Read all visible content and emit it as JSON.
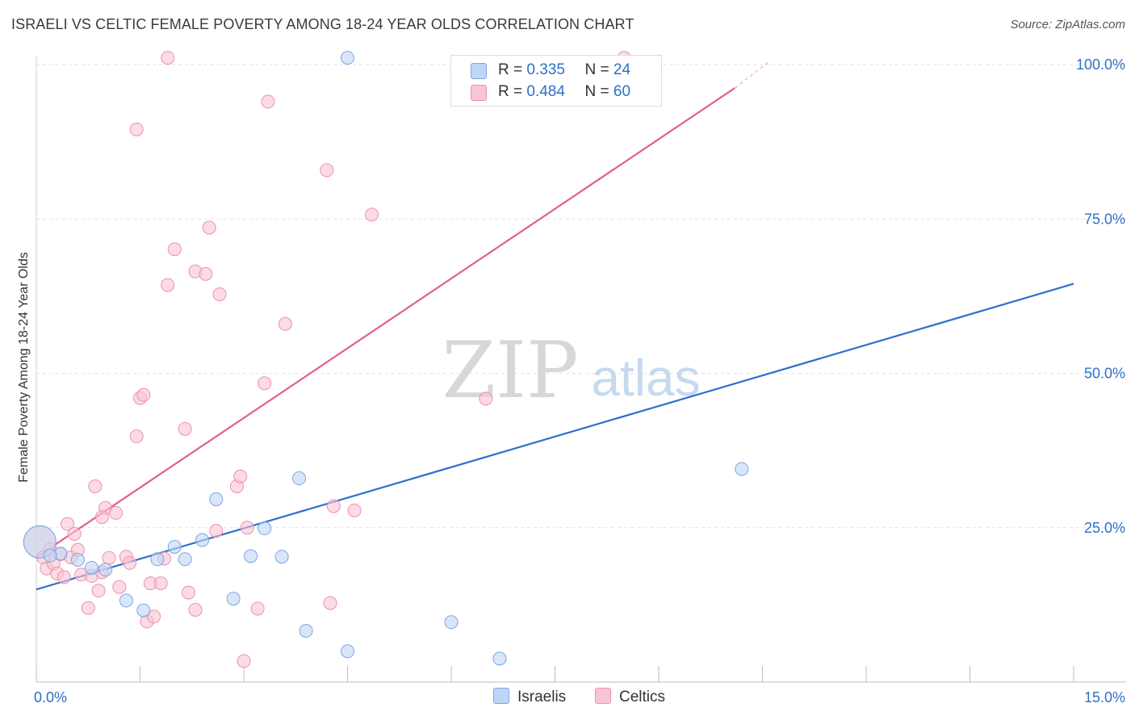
{
  "title": "ISRAELI VS CELTIC FEMALE POVERTY AMONG 18-24 YEAR OLDS CORRELATION CHART",
  "source": "Source: ZipAtlas.com",
  "watermark": {
    "zip": "ZIP",
    "atlas": "atlas"
  },
  "legend": {
    "r_label": "R =",
    "n_label": "N =",
    "rows": [
      {
        "r": "0.335",
        "n": "24"
      },
      {
        "r": "0.484",
        "n": "60"
      }
    ]
  },
  "chart_data": {
    "type": "scatter",
    "title": "ISRAELI VS CELTIC FEMALE POVERTY AMONG 18-24 YEAR OLDS CORRELATION CHART",
    "xlabel": "",
    "ylabel": "Female Poverty Among 18-24 Year Olds",
    "xlim": [
      0,
      15
    ],
    "ylim": [
      0,
      103
    ],
    "x_tick_labels": [
      "0.0%",
      "15.0%"
    ],
    "y_ticks": [
      25,
      50,
      75,
      100
    ],
    "y_tick_labels": [
      "25.0%",
      "50.0%",
      "75.0%",
      "100.0%"
    ],
    "grid": true,
    "colors": {
      "israelis_fill": "#c0d5f5",
      "israelis_stroke": "#7aa6e3",
      "israelis_line": "#2b6fce",
      "celtics_fill": "#f8c5d4",
      "celtics_stroke": "#ef8fab",
      "celtics_line": "#e0608c",
      "tick_label": "#2f6fc9"
    },
    "series": [
      {
        "name": "Israelis",
        "r": 0.335,
        "n": 24,
        "trend": {
          "x": [
            0,
            15
          ],
          "y": [
            15.0,
            64.5
          ]
        },
        "points": [
          {
            "x": 0.05,
            "y": 22.7,
            "big": true
          },
          {
            "x": 0.35,
            "y": 20.8
          },
          {
            "x": 0.6,
            "y": 19.8
          },
          {
            "x": 0.8,
            "y": 18.5
          },
          {
            "x": 1.0,
            "y": 18.2
          },
          {
            "x": 1.3,
            "y": 13.2
          },
          {
            "x": 1.55,
            "y": 11.6
          },
          {
            "x": 1.75,
            "y": 19.9
          },
          {
            "x": 2.0,
            "y": 21.9
          },
          {
            "x": 2.15,
            "y": 19.9
          },
          {
            "x": 2.4,
            "y": 23.0
          },
          {
            "x": 2.6,
            "y": 29.6
          },
          {
            "x": 2.85,
            "y": 13.5
          },
          {
            "x": 3.1,
            "y": 20.4
          },
          {
            "x": 3.3,
            "y": 24.9
          },
          {
            "x": 3.55,
            "y": 20.3
          },
          {
            "x": 3.8,
            "y": 33.0
          },
          {
            "x": 3.9,
            "y": 8.3
          },
          {
            "x": 4.5,
            "y": 5.0
          },
          {
            "x": 4.5,
            "y": 101.1
          },
          {
            "x": 6.0,
            "y": 9.7
          },
          {
            "x": 6.7,
            "y": 3.8
          },
          {
            "x": 10.2,
            "y": 34.5
          },
          {
            "x": 0.2,
            "y": 20.5
          }
        ]
      },
      {
        "name": "Celtics",
        "r": 0.484,
        "n": 60,
        "trend": {
          "x": [
            0,
            10.1
          ],
          "y": [
            20.2,
            96.2
          ]
        },
        "trend_dashed": {
          "x": [
            10.1,
            10.6
          ],
          "y": [
            96.2,
            100.5
          ]
        },
        "points": [
          {
            "x": 0.05,
            "y": 22.7,
            "big": true
          },
          {
            "x": 0.1,
            "y": 20.2
          },
          {
            "x": 0.15,
            "y": 18.4
          },
          {
            "x": 0.2,
            "y": 21.5
          },
          {
            "x": 0.25,
            "y": 19.2
          },
          {
            "x": 0.3,
            "y": 17.6
          },
          {
            "x": 0.35,
            "y": 20.7
          },
          {
            "x": 0.4,
            "y": 17.0
          },
          {
            "x": 0.45,
            "y": 25.6
          },
          {
            "x": 0.5,
            "y": 20.2
          },
          {
            "x": 0.55,
            "y": 24.0
          },
          {
            "x": 0.6,
            "y": 21.4
          },
          {
            "x": 0.65,
            "y": 17.4
          },
          {
            "x": 0.75,
            "y": 12.0
          },
          {
            "x": 0.8,
            "y": 17.2
          },
          {
            "x": 0.85,
            "y": 31.7
          },
          {
            "x": 0.9,
            "y": 14.8
          },
          {
            "x": 0.95,
            "y": 17.8
          },
          {
            "x": 1.0,
            "y": 28.2
          },
          {
            "x": 1.05,
            "y": 20.1
          },
          {
            "x": 1.15,
            "y": 27.4
          },
          {
            "x": 1.2,
            "y": 15.4
          },
          {
            "x": 1.3,
            "y": 20.3
          },
          {
            "x": 1.35,
            "y": 19.3
          },
          {
            "x": 1.45,
            "y": 39.8
          },
          {
            "x": 1.45,
            "y": 89.5
          },
          {
            "x": 1.5,
            "y": 46.0
          },
          {
            "x": 1.55,
            "y": 46.5
          },
          {
            "x": 1.6,
            "y": 9.8
          },
          {
            "x": 1.65,
            "y": 16.0
          },
          {
            "x": 1.7,
            "y": 10.6
          },
          {
            "x": 1.8,
            "y": 16.0
          },
          {
            "x": 1.85,
            "y": 20.0
          },
          {
            "x": 1.9,
            "y": 64.3
          },
          {
            "x": 1.9,
            "y": 101.1
          },
          {
            "x": 2.0,
            "y": 70.1
          },
          {
            "x": 2.15,
            "y": 41.0
          },
          {
            "x": 2.2,
            "y": 14.5
          },
          {
            "x": 2.3,
            "y": 66.5
          },
          {
            "x": 2.3,
            "y": 11.7
          },
          {
            "x": 2.45,
            "y": 66.1
          },
          {
            "x": 2.5,
            "y": 73.6
          },
          {
            "x": 2.6,
            "y": 24.5
          },
          {
            "x": 2.65,
            "y": 62.8
          },
          {
            "x": 2.9,
            "y": 31.7
          },
          {
            "x": 2.95,
            "y": 33.3
          },
          {
            "x": 3.0,
            "y": 3.4
          },
          {
            "x": 3.05,
            "y": 25.0
          },
          {
            "x": 3.2,
            "y": 11.9
          },
          {
            "x": 3.3,
            "y": 48.4
          },
          {
            "x": 3.35,
            "y": 94.0
          },
          {
            "x": 3.6,
            "y": 58.0
          },
          {
            "x": 4.2,
            "y": 82.9
          },
          {
            "x": 4.25,
            "y": 12.8
          },
          {
            "x": 4.3,
            "y": 28.5
          },
          {
            "x": 4.6,
            "y": 27.8
          },
          {
            "x": 4.85,
            "y": 75.7
          },
          {
            "x": 6.5,
            "y": 45.9
          },
          {
            "x": 8.5,
            "y": 101.1
          },
          {
            "x": 0.95,
            "y": 26.7
          }
        ]
      }
    ]
  }
}
